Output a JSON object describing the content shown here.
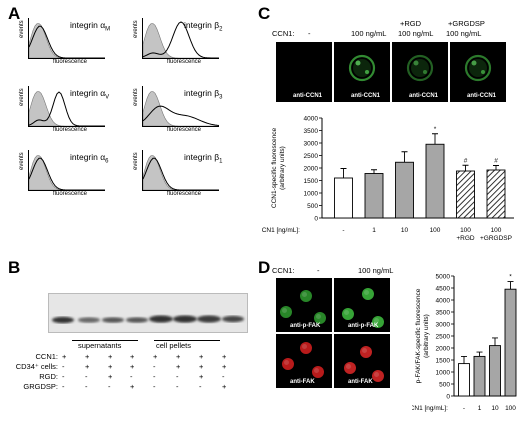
{
  "panel_letters": {
    "A": "A",
    "B": "B",
    "C": "C",
    "D": "D"
  },
  "panelA": {
    "histograms": [
      {
        "title_main": "integrin α",
        "title_sub": "M",
        "ylabel": "events",
        "xlabel": "fluorescence",
        "variant": "overlap"
      },
      {
        "title_main": "integrin β",
        "title_sub": "2",
        "ylabel": "events",
        "xlabel": "fluorescence",
        "variant": "shift"
      },
      {
        "title_main": "integrin α",
        "title_sub": "V",
        "ylabel": "events",
        "xlabel": "fluorescence",
        "variant": "shift-small"
      },
      {
        "title_main": "integrin β",
        "title_sub": "3",
        "ylabel": "events",
        "xlabel": "fluorescence",
        "variant": "broad"
      },
      {
        "title_main": "integrin α",
        "title_sub": "6",
        "ylabel": "events",
        "xlabel": "fluorescence",
        "variant": "overlap"
      },
      {
        "title_main": "integrin β",
        "title_sub": "1",
        "ylabel": "events",
        "xlabel": "fluorescence",
        "variant": "overlap"
      }
    ]
  },
  "panelB": {
    "group_labels": [
      "supernatants",
      "cell pellets"
    ],
    "row_labels": [
      "CCN1:",
      "CD34⁺ cells:",
      "RGD:",
      "GRGDSP:"
    ],
    "rows": [
      [
        "+",
        "+",
        "+",
        "+",
        "+",
        "+",
        "+",
        "+"
      ],
      [
        "-",
        "+",
        "+",
        "+",
        "-",
        "+",
        "+",
        "+"
      ],
      [
        "-",
        "-",
        "+",
        "-",
        "-",
        "-",
        "+",
        "-"
      ],
      [
        "-",
        "-",
        "-",
        "+",
        "-",
        "-",
        "-",
        "+"
      ]
    ]
  },
  "panelC": {
    "header_label": "CCN1:",
    "conditions": [
      {
        "line1": "",
        "line2": "-"
      },
      {
        "line1": "",
        "line2": "100 ng/mL"
      },
      {
        "line1": "+RGD",
        "line2": "100 ng/mL"
      },
      {
        "line1": "+GRGDSP",
        "line2": "100 ng/mL"
      }
    ],
    "image_label": "anti-CCN1"
  },
  "panelD": {
    "header_label": "CCN1:",
    "conditions": [
      "-",
      "100 ng/mL"
    ],
    "image_labels": [
      "anti-p-FAK",
      "anti-FAK"
    ]
  },
  "chart_data": [
    {
      "type": "bar",
      "ylabel": "CCN1-specific fluorescence (arbitrary units)",
      "xlabel": "CCN1 [ng/mL]:",
      "categories": [
        "-",
        "1",
        "10",
        "100",
        "100",
        "100"
      ],
      "subcategories": [
        "",
        "",
        "",
        "",
        "+RGD",
        "+GRGDSP"
      ],
      "values": [
        1600,
        1780,
        2230,
        2950,
        1880,
        1920
      ],
      "errors": [
        380,
        150,
        420,
        420,
        230,
        180
      ],
      "annotations": [
        "",
        "",
        "",
        "*",
        "#",
        "#"
      ],
      "fills": [
        "white",
        "gray",
        "gray",
        "gray",
        "hatched",
        "hatched"
      ],
      "ylim": [
        0,
        4000
      ],
      "yticks": [
        0,
        500,
        1000,
        1500,
        2000,
        2500,
        3000,
        3500,
        4000
      ]
    },
    {
      "type": "bar",
      "ylabel": "p-FAK/FAK-specific fluorescence (arbitrary units)",
      "xlabel": "CCN1 [ng/mL]:",
      "categories": [
        "-",
        "1",
        "10",
        "100"
      ],
      "values": [
        1350,
        1650,
        2100,
        4450
      ],
      "errors": [
        300,
        180,
        320,
        320
      ],
      "annotations": [
        "",
        "",
        "",
        "*"
      ],
      "fills": [
        "white",
        "gray",
        "gray",
        "gray"
      ],
      "ylim": [
        0,
        5000
      ],
      "yticks": [
        0,
        500,
        1000,
        1500,
        2000,
        2500,
        3000,
        3500,
        4000,
        4500,
        5000
      ]
    }
  ]
}
